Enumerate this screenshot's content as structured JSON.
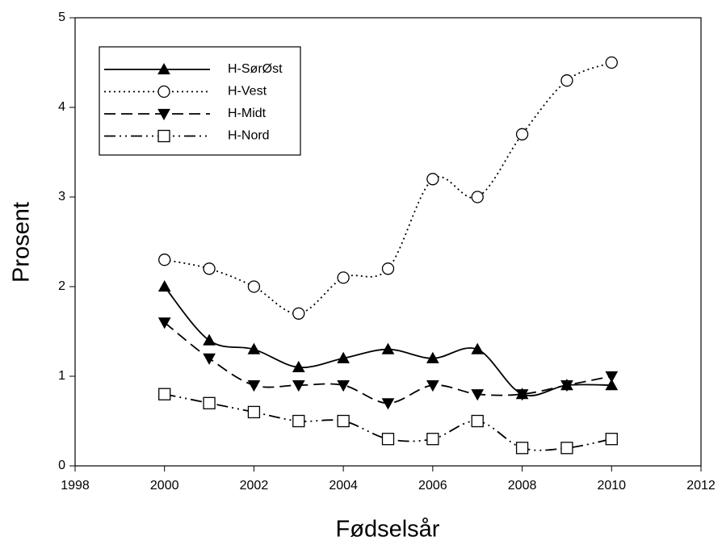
{
  "chart_data": {
    "type": "line",
    "x": [
      2000,
      2001,
      2002,
      2003,
      2004,
      2005,
      2006,
      2007,
      2008,
      2009,
      2010
    ],
    "series": [
      {
        "name": "H-SørØst",
        "color": "#000000",
        "dash": "solid",
        "marker": "triangle-up",
        "values": [
          2.0,
          1.4,
          1.3,
          1.1,
          1.2,
          1.3,
          1.2,
          1.3,
          0.8,
          0.9,
          0.9
        ]
      },
      {
        "name": "H-Vest",
        "color": "#000000",
        "dash": "dotted",
        "marker": "circle",
        "values": [
          2.3,
          2.2,
          2.0,
          1.7,
          2.1,
          2.2,
          3.2,
          3.0,
          3.7,
          4.3,
          4.5
        ]
      },
      {
        "name": "H-Midt",
        "color": "#000000",
        "dash": "dashed",
        "marker": "triangle-down",
        "values": [
          1.6,
          1.2,
          0.9,
          0.9,
          0.9,
          0.7,
          0.9,
          0.8,
          0.8,
          0.9,
          1.0
        ]
      },
      {
        "name": "H-Nord",
        "color": "#000000",
        "dash": "dash-dot-dot",
        "marker": "square",
        "values": [
          0.8,
          0.7,
          0.6,
          0.5,
          0.5,
          0.3,
          0.3,
          0.5,
          0.2,
          0.2,
          0.3
        ]
      }
    ],
    "xlabel": "Fødselsår",
    "ylabel": "Prosent",
    "xlim": [
      1998,
      2012
    ],
    "xticks": [
      1998,
      2000,
      2002,
      2004,
      2006,
      2008,
      2010,
      2012
    ],
    "ylim": [
      0,
      5
    ],
    "yticks": [
      0,
      1,
      2,
      3,
      4,
      5
    ],
    "grid": false,
    "legend": "upper left"
  }
}
